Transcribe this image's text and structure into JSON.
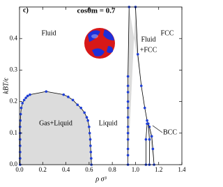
{
  "chart_data": {
    "type": "phase",
    "panel_label": "c)",
    "x_label": "ρ σ³",
    "y_label": "kBT/ϵ",
    "xlim": [
      0,
      1.4
    ],
    "ylim": [
      0,
      0.5
    ],
    "xticks": [
      {
        "value": 0,
        "label": "0.0"
      },
      {
        "value": 0.2,
        "label": "0.2"
      },
      {
        "value": 0.4,
        "label": "0.4"
      },
      {
        "value": 0.6,
        "label": "0.6"
      },
      {
        "value": 0.8,
        "label": "0.8"
      },
      {
        "value": 1,
        "label": "1.0"
      },
      {
        "value": 1.2,
        "label": "1.2"
      },
      {
        "value": 1.4,
        "label": "1.4"
      }
    ],
    "yticks": [
      {
        "value": 0,
        "label": "0.0"
      },
      {
        "value": 0.1,
        "label": "0.1"
      },
      {
        "value": 0.2,
        "label": "0.2"
      },
      {
        "value": 0.3,
        "label": "0.3"
      },
      {
        "value": 0.4,
        "label": "0.4"
      }
    ],
    "annotations": [
      "cosθm = 0.7",
      "Fluid",
      "Fluid",
      "+FCC",
      "FCC",
      "Gas+Liquid",
      "Liquid",
      "BCC"
    ],
    "line_color": "#000000",
    "marker_color": "#1f3fd6",
    "fill_color": "#dcdcdc",
    "gas_liquid": {
      "x": [
        0.005,
        0.005,
        0.005,
        0.005,
        0.005,
        0.005,
        0.005,
        0.007,
        0.01,
        0.015,
        0.025,
        0.04,
        0.055,
        0.07,
        0.09,
        0.23,
        0.38,
        0.42,
        0.46,
        0.5,
        0.53,
        0.56,
        0.58,
        0.59,
        0.6,
        0.605,
        0.61,
        0.612,
        0.615,
        0.618,
        0.62
      ],
      "y": [
        0,
        0.02,
        0.04,
        0.06,
        0.08,
        0.1,
        0.12,
        0.14,
        0.16,
        0.18,
        0.195,
        0.205,
        0.212,
        0.218,
        0.222,
        0.232,
        0.222,
        0.215,
        0.205,
        0.19,
        0.18,
        0.165,
        0.15,
        0.14,
        0.12,
        0.1,
        0.08,
        0.06,
        0.04,
        0.02,
        0
      ]
    },
    "fluid_boundary": {
      "x": [
        0.935,
        0.935,
        0.935,
        0.935,
        0.935,
        0.935,
        0.935,
        0.935,
        0.935,
        0.935,
        0.935,
        0.935,
        0.945
      ],
      "y": [
        0,
        0.03,
        0.05,
        0.08,
        0.1,
        0.12,
        0.15,
        0.18,
        0.2,
        0.23,
        0.25,
        0.28,
        0.5
      ]
    },
    "fcc_boundary": {
      "x": [
        1.0,
        1.02,
        1.05,
        1.08,
        1.1,
        1.12,
        1.14,
        1.15,
        1.16
      ],
      "y": [
        0.5,
        0.35,
        0.25,
        0.18,
        0.14,
        0.12,
        0.09,
        0.05,
        0
      ]
    },
    "bcc_boundary": {
      "x": [
        1.09,
        1.09,
        1.1,
        1.11,
        1.12,
        1.12
      ],
      "y": [
        0,
        0.08,
        0.13,
        0.13,
        0.08,
        0
      ]
    }
  }
}
